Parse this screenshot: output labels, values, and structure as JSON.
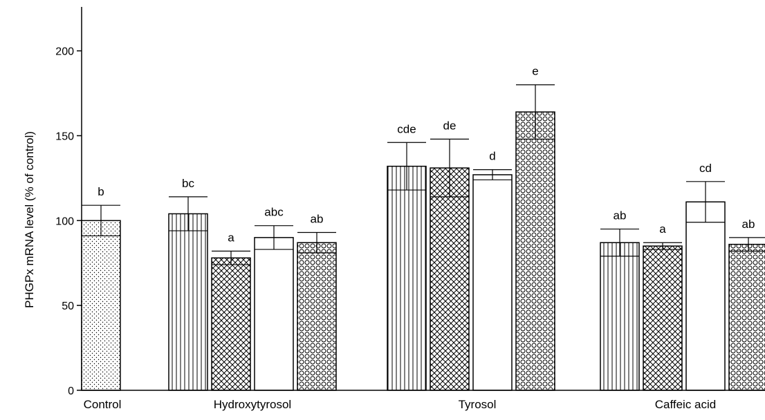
{
  "chart_data": {
    "type": "bar",
    "xlabel": "",
    "ylabel": "PHGPx mRNA level (% of control)",
    "ylim": [
      0,
      225
    ],
    "yticks": [
      0,
      50,
      100,
      150,
      200
    ],
    "grid": false,
    "legend": "none",
    "categories": [
      "Control",
      "Hydroxytyrosol",
      "Tyrosol",
      "Caffeic acid"
    ],
    "bars": [
      {
        "group": "Control",
        "value": 100,
        "error": 9,
        "label": "b",
        "pattern": "dots"
      },
      {
        "group": "Hydroxytyrosol",
        "value": 104,
        "error": 10,
        "label": "bc",
        "pattern": "vlines"
      },
      {
        "group": "Hydroxytyrosol",
        "value": 78,
        "error": 4,
        "label": "a",
        "pattern": "crosshatch"
      },
      {
        "group": "Hydroxytyrosol",
        "value": 90,
        "error": 7,
        "label": "abc",
        "pattern": "plain"
      },
      {
        "group": "Hydroxytyrosol",
        "value": 87,
        "error": 6,
        "label": "ab",
        "pattern": "circles"
      },
      {
        "group": "Tyrosol",
        "value": 132,
        "error": 14,
        "label": "cde",
        "pattern": "vlines"
      },
      {
        "group": "Tyrosol",
        "value": 131,
        "error": 17,
        "label": "de",
        "pattern": "crosshatch"
      },
      {
        "group": "Tyrosol",
        "value": 127,
        "error": 3,
        "label": "d",
        "pattern": "plain"
      },
      {
        "group": "Tyrosol",
        "value": 164,
        "error": 16,
        "label": "e",
        "pattern": "circles"
      },
      {
        "group": "Caffeic acid",
        "value": 87,
        "error": 8,
        "label": "ab",
        "pattern": "vlines"
      },
      {
        "group": "Caffeic acid",
        "value": 85,
        "error": 2,
        "label": "a",
        "pattern": "crosshatch"
      },
      {
        "group": "Caffeic acid",
        "value": 111,
        "error": 12,
        "label": "cd",
        "pattern": "plain"
      },
      {
        "group": "Caffeic acid",
        "value": 86,
        "error": 4,
        "label": "ab",
        "pattern": "circles"
      }
    ],
    "colors": {
      "ink": "#000000",
      "fill": "#ffffff"
    }
  }
}
